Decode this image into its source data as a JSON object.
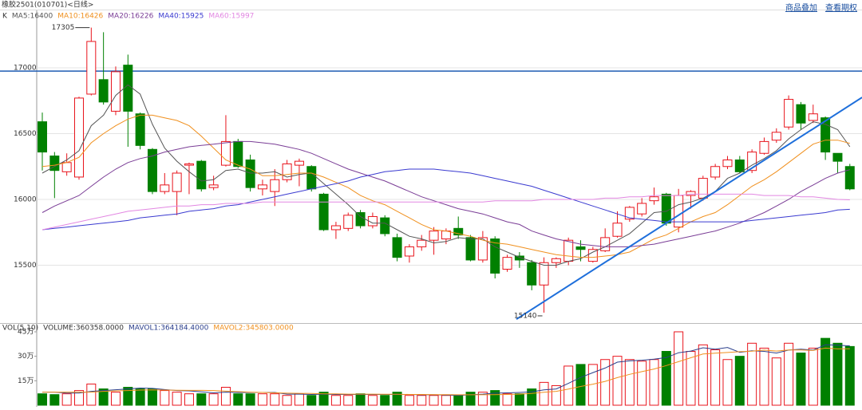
{
  "toolbar": {
    "links": [
      "商品叠加",
      "查看期权"
    ]
  },
  "chart_data": [
    {
      "type": "candlestick",
      "title": "橡胶2501(010701)<日线>",
      "legend_label": "K",
      "up_color": "#e8141c",
      "down_color": "#008000",
      "open": [
        16590,
        16330,
        16210,
        16170,
        16800,
        16910,
        16670,
        17020,
        16650,
        16380,
        16060,
        16060,
        16260,
        16290,
        16090,
        16260,
        16440,
        16300,
        16080,
        16060,
        16150,
        16260,
        16250,
        16040,
        15770,
        15780,
        15900,
        15800,
        15860,
        15710,
        15570,
        15640,
        15690,
        15700,
        15780,
        15710,
        15540,
        15700,
        15470,
        15570,
        15520,
        15350,
        15520,
        15530,
        15640,
        15530,
        15610,
        15720,
        15850,
        15890,
        15990,
        16040,
        15790,
        16030,
        16010,
        16170,
        16250,
        16300,
        16220,
        16350,
        16450,
        16550,
        16720,
        16600,
        16620,
        16350,
        16250
      ],
      "high": [
        16660,
        16360,
        16350,
        16780,
        17305,
        17270,
        17010,
        17100,
        16660,
        16390,
        16200,
        16220,
        16280,
        16300,
        16180,
        16640,
        16460,
        16340,
        16150,
        16230,
        16300,
        16310,
        16260,
        16050,
        15830,
        15900,
        15920,
        15900,
        15880,
        15740,
        15660,
        15730,
        15790,
        15780,
        15870,
        15730,
        15760,
        15720,
        15580,
        15600,
        15540,
        15560,
        15560,
        15710,
        15690,
        15640,
        15780,
        15910,
        15950,
        16010,
        16090,
        16050,
        16080,
        16070,
        16180,
        16270,
        16330,
        16330,
        16380,
        16470,
        16540,
        16790,
        16740,
        16720,
        16630,
        16350,
        16270
      ],
      "low": [
        16220,
        16010,
        16180,
        16150,
        16790,
        16720,
        16640,
        16400,
        16380,
        16040,
        16040,
        15880,
        16040,
        16060,
        16070,
        16250,
        16240,
        16060,
        16030,
        15950,
        16130,
        16100,
        16060,
        15760,
        15700,
        15760,
        15780,
        15780,
        15720,
        15530,
        15520,
        15610,
        15580,
        15660,
        15700,
        15530,
        15520,
        15400,
        15450,
        15480,
        15310,
        15140,
        15480,
        15500,
        15530,
        15520,
        15600,
        15710,
        15830,
        15870,
        15960,
        15800,
        15750,
        15930,
        15990,
        16150,
        16230,
        16200,
        16200,
        16340,
        16430,
        16530,
        16530,
        16580,
        16300,
        16200,
        16070
      ],
      "close": [
        16360,
        16220,
        16280,
        16770,
        17200,
        16740,
        16970,
        16670,
        16410,
        16060,
        16110,
        16200,
        16270,
        16080,
        16110,
        16440,
        16250,
        16090,
        16110,
        16150,
        16270,
        16290,
        16080,
        15770,
        15800,
        15880,
        15800,
        15870,
        15740,
        15560,
        15640,
        15690,
        15760,
        15760,
        15730,
        15540,
        15710,
        15440,
        15560,
        15540,
        15350,
        15520,
        15550,
        15690,
        15620,
        15620,
        15710,
        15820,
        15940,
        15970,
        16020,
        15820,
        16030,
        16060,
        16160,
        16250,
        16300,
        16210,
        16360,
        16440,
        16510,
        16760,
        16580,
        16650,
        16360,
        16290,
        16080
      ],
      "series": [
        {
          "name": "MA5:16400",
          "color": "#555555",
          "values": [
            16200,
            16250,
            16300,
            16370,
            16560,
            16640,
            16790,
            16870,
            16800,
            16570,
            16390,
            16290,
            16210,
            16140,
            16150,
            16220,
            16230,
            16200,
            16200,
            16210,
            16170,
            16190,
            16200,
            16120,
            16040,
            15960,
            15870,
            15820,
            15820,
            15770,
            15720,
            15700,
            15670,
            15680,
            15710,
            15700,
            15700,
            15640,
            15600,
            15560,
            15530,
            15500,
            15500,
            15530,
            15550,
            15600,
            15640,
            15690,
            15740,
            15820,
            15900,
            15910,
            15960,
            15980,
            16010,
            16060,
            16160,
            16200,
            16260,
            16310,
            16370,
            16460,
            16530,
            16590,
            16570,
            16530,
            16400
          ]
        },
        {
          "name": "MA10:16426",
          "color": "#f0901e",
          "values": [
            16250,
            16260,
            16280,
            16320,
            16430,
            16500,
            16560,
            16610,
            16640,
            16640,
            16620,
            16600,
            16560,
            16480,
            16390,
            16300,
            16260,
            16230,
            16180,
            16180,
            16190,
            16200,
            16200,
            16170,
            16130,
            16090,
            16030,
            15990,
            15960,
            15910,
            15860,
            15810,
            15770,
            15760,
            15740,
            15720,
            15690,
            15670,
            15660,
            15640,
            15620,
            15600,
            15580,
            15570,
            15560,
            15560,
            15570,
            15580,
            15600,
            15650,
            15700,
            15730,
            15780,
            15830,
            15870,
            15900,
            15960,
            16030,
            16100,
            16150,
            16210,
            16280,
            16350,
            16420,
            16450,
            16450,
            16426
          ]
        },
        {
          "name": "MA20:16226",
          "color": "#7a3d96",
          "values": [
            15900,
            15950,
            15990,
            16030,
            16100,
            16170,
            16230,
            16280,
            16310,
            16330,
            16360,
            16380,
            16400,
            16410,
            16420,
            16430,
            16440,
            16440,
            16430,
            16420,
            16400,
            16380,
            16350,
            16310,
            16270,
            16230,
            16200,
            16170,
            16140,
            16100,
            16060,
            16020,
            15990,
            15960,
            15930,
            15910,
            15890,
            15860,
            15830,
            15810,
            15760,
            15730,
            15700,
            15680,
            15660,
            15650,
            15640,
            15640,
            15640,
            15650,
            15660,
            15680,
            15700,
            15720,
            15740,
            15760,
            15790,
            15820,
            15860,
            15900,
            15950,
            16000,
            16060,
            16110,
            16160,
            16200,
            16226
          ]
        },
        {
          "name": "MA40:15925",
          "color": "#3a3ad0",
          "values": [
            15770,
            15780,
            15790,
            15800,
            15810,
            15820,
            15830,
            15840,
            15860,
            15870,
            15880,
            15890,
            15910,
            15920,
            15930,
            15950,
            15960,
            15980,
            16000,
            16020,
            16040,
            16060,
            16080,
            16100,
            16120,
            16140,
            16170,
            16190,
            16210,
            16220,
            16230,
            16230,
            16230,
            16220,
            16210,
            16200,
            16180,
            16160,
            16140,
            16120,
            16100,
            16070,
            16040,
            16010,
            15980,
            15950,
            15920,
            15890,
            15860,
            15850,
            15840,
            15830,
            15830,
            15830,
            15830,
            15830,
            15830,
            15830,
            15840,
            15850,
            15860,
            15870,
            15880,
            15890,
            15900,
            15920,
            15925
          ]
        },
        {
          "name": "MA60:15997",
          "color": "#e287e2",
          "values": [
            15770,
            15790,
            15810,
            15830,
            15850,
            15870,
            15890,
            15910,
            15920,
            15930,
            15940,
            15950,
            15950,
            15960,
            15960,
            15970,
            15970,
            15970,
            15980,
            15980,
            15980,
            15980,
            15980,
            15980,
            15980,
            15980,
            15980,
            15980,
            15980,
            15980,
            15980,
            15980,
            15980,
            15980,
            15980,
            15980,
            15980,
            15990,
            15990,
            15990,
            15990,
            16000,
            16000,
            16000,
            16000,
            16000,
            16010,
            16010,
            16020,
            16020,
            16030,
            16030,
            16030,
            16040,
            16040,
            16040,
            16040,
            16040,
            16040,
            16030,
            16030,
            16030,
            16020,
            16020,
            16010,
            16000,
            15997
          ]
        }
      ],
      "annotations": {
        "max": "17305",
        "min": "15140"
      },
      "reference_lines": [
        {
          "value": 16975,
          "color": "#1e5cb3"
        }
      ],
      "trend_lines": [
        {
          "x": [
            38.75,
            67
          ],
          "y": [
            15090,
            16775
          ],
          "color": "#1e6fdb"
        }
      ],
      "ylim": [
        15061,
        17442
      ],
      "yticks": [
        17000,
        16500,
        16000,
        15500
      ],
      "grid": true
    },
    {
      "type": "volume",
      "legend_label": "VOL(5,10)",
      "name": "VOLUME:360358.0000",
      "values": [
        7,
        6.5,
        7,
        9,
        13,
        10,
        8,
        11,
        10,
        10,
        9,
        8,
        7,
        7,
        7,
        11,
        7,
        7,
        7,
        7,
        6,
        7,
        6,
        8,
        6,
        6,
        7,
        6,
        6,
        8,
        6,
        6,
        6,
        6,
        6,
        8,
        8,
        9,
        7,
        7,
        10,
        14,
        12,
        24,
        25,
        25,
        28,
        30,
        28,
        27,
        28,
        33,
        45,
        33,
        37,
        34,
        28,
        30,
        38,
        35,
        29,
        38,
        32,
        35,
        41,
        38,
        36
      ],
      "series": [
        {
          "name": "MAVOL1:364184.4000",
          "color": "#2b3f8c",
          "values": [
            8,
            8,
            7.5,
            7.5,
            8.5,
            9,
            9.5,
            10,
            10.5,
            10.3,
            9.6,
            9,
            8.8,
            8.2,
            7.6,
            8,
            7.8,
            7.8,
            7.8,
            7.8,
            6.8,
            6.8,
            6.6,
            6.8,
            6.6,
            6.6,
            6.6,
            6.6,
            6.6,
            6.6,
            6.6,
            6.4,
            6.4,
            6.2,
            6,
            6.4,
            6.8,
            7.4,
            7.6,
            7.8,
            8.2,
            9.4,
            10,
            13.4,
            17,
            20,
            22.8,
            26.4,
            27.2,
            27.6,
            28.2,
            29.2,
            32.2,
            33.2,
            35.2,
            34.4,
            35.4,
            32.4,
            33.4,
            33,
            32,
            33.8,
            34.4,
            33.8,
            37,
            36.8,
            36.4
          ]
        },
        {
          "name": "MAVOL2:345803.0000",
          "color": "#f0901e",
          "values": [
            8,
            8,
            8,
            8,
            8,
            8.5,
            8.8,
            9,
            9.3,
            9.4,
            9.3,
            9.2,
            9.1,
            9.1,
            9,
            8.6,
            8.3,
            8,
            7.8,
            7.6,
            7.4,
            7.3,
            7.2,
            7,
            7,
            6.8,
            6.8,
            6.8,
            6.7,
            6.7,
            6.6,
            6.6,
            6.5,
            6.5,
            6.4,
            6.4,
            6.4,
            6.5,
            6.6,
            6.8,
            7.2,
            7.9,
            8.5,
            9.9,
            11.5,
            12.9,
            14.6,
            16.9,
            18.9,
            20.6,
            22.2,
            24.3,
            26.7,
            29.1,
            31.4,
            31.9,
            32.3,
            32.8,
            33.1,
            33.8,
            33.2,
            33.9,
            33.9,
            33.6,
            35,
            34.5,
            34.6
          ]
        }
      ],
      "ylim": [
        0,
        48.9
      ],
      "yticks": [
        {
          "value": 45,
          "label": "45万"
        },
        {
          "value": 30,
          "label": "30万"
        },
        {
          "value": 15,
          "label": "15万"
        }
      ],
      "grid": false
    }
  ]
}
